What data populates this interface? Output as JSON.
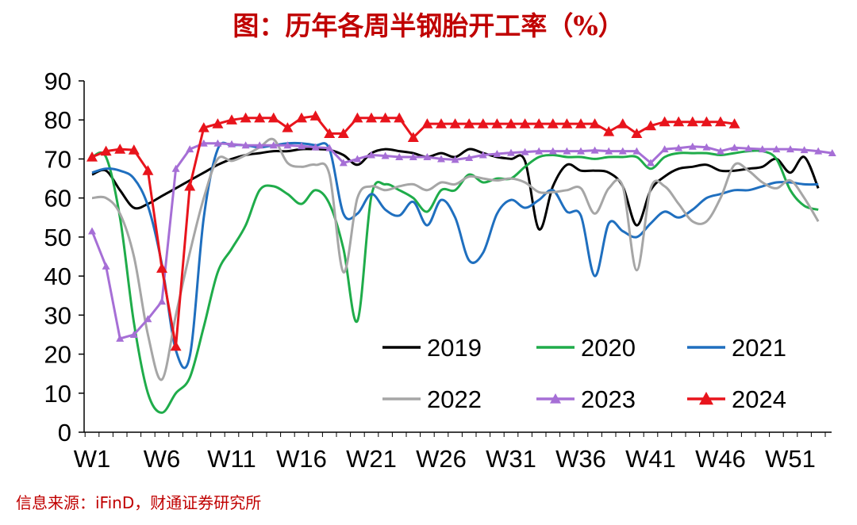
{
  "chart_data": {
    "type": "line",
    "title": "图：历年各周半钢胎开工率（%）",
    "source": "信息来源：iFinD，财通证券研究所",
    "xlabel": "",
    "ylabel": "",
    "ylim": [
      0,
      90
    ],
    "yticks": [
      "0",
      "10",
      "20",
      "30",
      "40",
      "50",
      "60",
      "70",
      "80",
      "90"
    ],
    "xticks": [
      {
        "week": 1,
        "label": "W1"
      },
      {
        "week": 6,
        "label": "W6"
      },
      {
        "week": 11,
        "label": "W11"
      },
      {
        "week": 16,
        "label": "W16"
      },
      {
        "week": 21,
        "label": "W21"
      },
      {
        "week": 26,
        "label": "W26"
      },
      {
        "week": 31,
        "label": "W31"
      },
      {
        "week": 36,
        "label": "W36"
      },
      {
        "week": 41,
        "label": "W41"
      },
      {
        "week": 46,
        "label": "W46"
      },
      {
        "week": 51,
        "label": "W51"
      }
    ],
    "grid": false,
    "legend_position": "bottom-right",
    "series": [
      {
        "name": "2019",
        "color": "#000000",
        "marker": "none",
        "values": [
          66,
          67,
          62,
          57.5,
          58.5,
          60.5,
          62.5,
          64.5,
          66.5,
          68.5,
          70,
          71,
          71.5,
          72,
          72,
          72.5,
          72.5,
          72.3,
          71,
          68.5,
          71.5,
          72.5,
          72,
          71.5,
          70.5,
          71.5,
          70.5,
          72.5,
          71.5,
          70.5,
          70,
          69.5,
          52,
          63,
          68.5,
          67,
          67,
          66.5,
          63,
          53,
          62,
          65.5,
          67.5,
          68,
          68.5,
          67,
          67,
          67.5,
          68,
          70,
          66.5,
          70.5,
          62.5
        ]
      },
      {
        "name": "2020",
        "color": "#1fac4a",
        "marker": "none",
        "values": [
          70.5,
          70.5,
          55,
          28,
          10,
          5,
          10,
          14,
          27,
          41,
          47,
          53,
          62,
          63,
          61,
          58.5,
          62,
          58.5,
          47,
          28.5,
          60.5,
          63.5,
          62,
          60,
          56.5,
          62,
          62,
          66,
          64,
          65,
          65,
          68,
          70.5,
          71,
          70.5,
          70.5,
          70,
          70.5,
          70.5,
          70.5,
          67.5,
          70.5,
          71.5,
          71.5,
          71.5,
          71,
          71.5,
          72,
          72,
          70,
          62,
          58,
          57
        ]
      },
      {
        "name": "2021",
        "color": "#1f6fbf",
        "marker": "none",
        "values": [
          66.5,
          67.5,
          67,
          65,
          58,
          43,
          21,
          19.5,
          55,
          72.5,
          73.5,
          73.5,
          73,
          73.5,
          74,
          74,
          73.5,
          72.5,
          56,
          56,
          61,
          57,
          55.5,
          59,
          53,
          59.5,
          55,
          44,
          46,
          56,
          59.5,
          57.5,
          59.5,
          62,
          56.5,
          55.5,
          40,
          53.5,
          51.5,
          50,
          53.5,
          56.5,
          55,
          57,
          60,
          61,
          62,
          62,
          63,
          64,
          64,
          63.5,
          63.5
        ]
      },
      {
        "name": "2022",
        "color": "#a6a6a6",
        "marker": "none",
        "values": [
          60,
          60,
          56,
          45,
          25,
          13.5,
          30,
          46,
          60,
          70,
          69.5,
          71,
          73,
          75,
          69,
          68,
          68.5,
          66,
          41,
          60,
          63,
          62,
          63,
          63.5,
          62,
          64,
          63.5,
          65.5,
          65,
          64.5,
          65,
          64,
          61.5,
          61.5,
          62,
          62.5,
          56,
          62.5,
          63,
          41.5,
          62.5,
          63,
          58.5,
          54,
          54,
          60,
          68.5,
          67,
          64,
          62.5,
          64.5,
          60,
          54
        ]
      },
      {
        "name": "2023",
        "color": "#a66fd6",
        "marker": "triangle",
        "values": [
          51.5,
          42.5,
          24,
          25,
          29,
          33.5,
          67.5,
          72.5,
          74,
          74,
          73.8,
          73.5,
          73.5,
          73.5,
          73.5,
          73.3,
          73,
          72.8,
          69,
          70,
          71,
          70.8,
          70.5,
          70.5,
          70.5,
          70,
          69.8,
          70.3,
          71,
          71.3,
          71.6,
          71.8,
          72,
          72,
          72,
          72,
          72.2,
          72,
          72,
          72,
          69,
          72.5,
          72.8,
          73.2,
          73,
          72,
          72.9,
          72.7,
          72.5,
          72.5,
          72.5,
          72.3,
          72,
          71.5
        ]
      },
      {
        "name": "2024",
        "color": "#e8141c",
        "marker": "triangle",
        "values": [
          70.5,
          72,
          72.5,
          72.3,
          67,
          42,
          22,
          63,
          78,
          79,
          80,
          80.5,
          80.5,
          80.5,
          78,
          80.5,
          81,
          76.5,
          76.5,
          80.5,
          80.5,
          80.5,
          80.5,
          75.5,
          79,
          79,
          79,
          79,
          79,
          79,
          79,
          79,
          79,
          79,
          79,
          79,
          79,
          77,
          79,
          76.5,
          78.5,
          79.5,
          79.5,
          79.5,
          79.5,
          79.5,
          79
        ]
      }
    ]
  }
}
